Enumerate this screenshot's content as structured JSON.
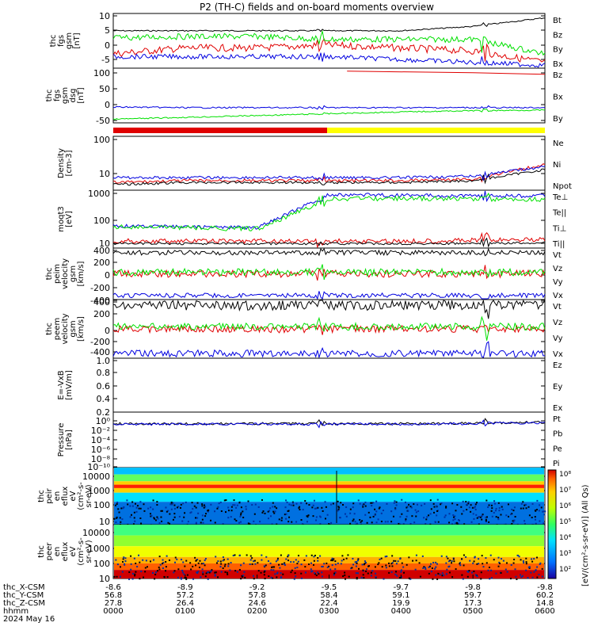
{
  "title": "P2 (TH-C) fields and on-board moments overview",
  "colors": {
    "black": "#000000",
    "red": "#e00000",
    "green": "#00e000",
    "blue": "#0000e0",
    "yellow": "#ffff00"
  },
  "panels": [
    {
      "ylabel": [
        "thc",
        "fgs",
        "gsm",
        "[nT]"
      ],
      "yticks": [
        "10",
        "5",
        "0",
        "-5"
      ],
      "legend": [
        {
          "text": "Bt",
          "color": "black"
        },
        {
          "text": "Bz",
          "color": "red"
        },
        {
          "text": "By",
          "color": "green"
        },
        {
          "text": "Bx",
          "color": "blue"
        }
      ]
    },
    {
      "ylabel": [
        "thc",
        "fgs",
        "gsm",
        "dsg",
        "[nT]"
      ],
      "yticks": [
        "100",
        "50",
        "0",
        "-50"
      ],
      "legend": [
        {
          "text": "Bz",
          "color": "red"
        },
        {
          "text": "Bx",
          "color": "black"
        },
        {
          "text": "By",
          "color": "green"
        }
      ]
    },
    {
      "ylabel": [
        "Density",
        "[cm-3]"
      ],
      "yticks": [
        "100",
        "10"
      ],
      "legend": [
        {
          "text": "Ne",
          "color": "red"
        },
        {
          "text": "Ni",
          "color": "black"
        },
        {
          "text": "Npot",
          "color": "blue"
        }
      ]
    },
    {
      "ylabel": [
        "moqt3",
        "[eV]"
      ],
      "yticks": [
        "1000",
        "100",
        "10"
      ],
      "legend": [
        {
          "text": "Te⊥",
          "color": "red"
        },
        {
          "text": "Te||",
          "color": "black"
        },
        {
          "text": "Ti⊥",
          "color": "blue"
        },
        {
          "text": "Ti||",
          "color": "green"
        }
      ]
    },
    {
      "ylabel": [
        "thc",
        "peim",
        "velocity",
        "gsm",
        "[km/s]"
      ],
      "yticks": [
        "400",
        "200",
        "0",
        "-200",
        "-400"
      ],
      "legend": [
        {
          "text": "Vt",
          "color": "black"
        },
        {
          "text": "Vz",
          "color": "red"
        },
        {
          "text": "Vy",
          "color": "green"
        },
        {
          "text": "Vx",
          "color": "blue"
        }
      ]
    },
    {
      "ylabel": [
        "thc",
        "peem",
        "velocity",
        "gsm",
        "[km/s]"
      ],
      "yticks": [
        "400",
        "200",
        "0",
        "-200",
        "-400"
      ],
      "legend": [
        {
          "text": "Vt",
          "color": "black"
        },
        {
          "text": "Vz",
          "color": "red"
        },
        {
          "text": "Vy",
          "color": "green"
        },
        {
          "text": "Vx",
          "color": "blue"
        }
      ]
    },
    {
      "ylabel": [
        "E=-VxB",
        "[mV/m]"
      ],
      "yticks": [
        "1.0",
        "0.8",
        "0.6",
        "0.4",
        "0.2",
        "0.0"
      ],
      "legend": [
        {
          "text": "Ez",
          "color": "red"
        },
        {
          "text": "Ey",
          "color": "green"
        },
        {
          "text": "Ex",
          "color": "blue"
        }
      ]
    },
    {
      "ylabel": [
        "Pressure",
        "[nPa]"
      ],
      "yticks": [
        "10⁰",
        "10⁻²",
        "10⁻⁴",
        "10⁻⁶",
        "10⁻⁸",
        "10⁻¹⁰"
      ],
      "legend": [
        {
          "text": "Pt",
          "color": "black"
        },
        {
          "text": "Pb",
          "color": "red"
        },
        {
          "text": "Pe",
          "color": "green"
        },
        {
          "text": "Pi",
          "color": "blue"
        }
      ]
    },
    {
      "ylabel": [
        "thc",
        "peir",
        "en",
        "eflux",
        "eV",
        "(cm²-s-",
        "sr-eV)"
      ],
      "yticks": [
        "10000",
        "1000",
        "100",
        "10"
      ],
      "legend": []
    },
    {
      "ylabel": [
        "thc",
        "peer",
        "en",
        "eflux",
        "eV",
        "(cm²-s-",
        "sr-eV)"
      ],
      "yticks": [
        "10000",
        "1000",
        "100",
        "10"
      ],
      "legend": []
    }
  ],
  "colorbar": {
    "ticks": [
      "10⁸",
      "10⁷",
      "10⁶",
      "10⁵",
      "10⁴",
      "10³",
      "10²"
    ],
    "label": "[eV/(cm²-s-sr-eV)] (All Qs)"
  },
  "xaxis": {
    "row_labels": [
      "thc_X-CSM",
      "thc_Y-CSM",
      "thc_Z-CSM",
      "hhmm",
      "2024 May 16"
    ],
    "columns": [
      [
        "-8.6",
        "56.8",
        "27.8",
        "0000"
      ],
      [
        "-8.9",
        "57.2",
        "26.4",
        "0100"
      ],
      [
        "-9.2",
        "57.8",
        "24.6",
        "0200"
      ],
      [
        "-9.5",
        "58.4",
        "22.4",
        "0300"
      ],
      [
        "-9.7",
        "59.1",
        "19.9",
        "0400"
      ],
      [
        "-9.8",
        "59.7",
        "17.3",
        "0500"
      ],
      [
        "-9.8",
        "60.2",
        "14.8",
        "0600"
      ]
    ]
  },
  "chart_data": {
    "type": "line",
    "title": "P2 (TH-C) fields and on-board moments overview",
    "x": [
      "0000",
      "0100",
      "0200",
      "0300",
      "0400",
      "0500",
      "0600"
    ],
    "panels": [
      {
        "ylim": [
          -8,
          11
        ],
        "series": [
          {
            "name": "Bt",
            "values": [
              5,
              5,
              5,
              5,
              5,
              6.5,
              9.5
            ]
          },
          {
            "name": "Bz",
            "values": [
              -3,
              -1,
              -1,
              0,
              -1,
              -2,
              -6
            ]
          },
          {
            "name": "By",
            "values": [
              2.5,
              3,
              3,
              2,
              2,
              2,
              -3
            ]
          },
          {
            "name": "Bx",
            "values": [
              -4,
              -4,
              -4,
              -4,
              -5,
              -6,
              -7
            ]
          }
        ]
      },
      {
        "ylim": [
          -70,
          110
        ],
        "series": [
          {
            "name": "Bz",
            "values": [
              null,
              null,
              null,
              null,
              100,
              95,
              90
            ]
          },
          {
            "name": "Bx",
            "values": [
              -18,
              -20,
              -20,
              -20,
              -20,
              -20,
              -20
            ]
          },
          {
            "name": "By",
            "values": [
              -58,
              -52,
              -46,
              -40,
              -34,
              -30,
              -28
            ]
          }
        ]
      },
      {
        "ylim": [
          2,
          100
        ],
        "ylog": true,
        "series": [
          {
            "name": "Ne",
            "values": [
              3.5,
              4,
              4,
              4,
              4,
              4.5,
              13
            ]
          },
          {
            "name": "Ni",
            "values": [
              3,
              3.5,
              3.5,
              3.5,
              3.5,
              4,
              9
            ]
          },
          {
            "name": "Npot",
            "values": [
              5,
              5,
              5,
              5,
              5,
              5.5,
              11
            ]
          }
        ]
      },
      {
        "ylim": [
          8,
          1500
        ],
        "ylog": true,
        "series": [
          {
            "name": "Te⊥",
            "values": [
              15,
              15,
              15,
              15,
              15,
              16,
              18
            ]
          },
          {
            "name": "Te||",
            "values": [
              12,
              12,
              12,
              12,
              12,
              12,
              13
            ]
          },
          {
            "name": "Ti⊥",
            "values": [
              60,
              55,
              50,
              1000,
              950,
              900,
              900
            ]
          },
          {
            "name": "Ti||",
            "values": [
              55,
              50,
              45,
              700,
              700,
              700,
              650
            ]
          }
        ]
      },
      {
        "ylim": [
          -500,
          500
        ],
        "series": [
          {
            "name": "Vt",
            "values": [
              410,
              410,
              410,
              410,
              410,
              410,
              410
            ]
          },
          {
            "name": "Vz",
            "values": [
              0,
              0,
              0,
              0,
              0,
              0,
              0
            ]
          },
          {
            "name": "Vy",
            "values": [
              30,
              30,
              30,
              30,
              30,
              30,
              30
            ]
          },
          {
            "name": "Vx",
            "values": [
              -420,
              -420,
              -420,
              -420,
              -420,
              -420,
              -420
            ]
          }
        ]
      },
      {
        "ylim": [
          -500,
          500
        ],
        "series": [
          {
            "name": "Vt",
            "values": [
              400,
              400,
              400,
              400,
              400,
              410,
              420
            ]
          },
          {
            "name": "Vz",
            "values": [
              0,
              0,
              -10,
              0,
              0,
              0,
              0
            ]
          },
          {
            "name": "Vy",
            "values": [
              40,
              40,
              40,
              40,
              40,
              40,
              40
            ]
          },
          {
            "name": "Vx",
            "values": [
              -420,
              -420,
              -420,
              -420,
              -420,
              -420,
              -420
            ]
          }
        ]
      },
      {
        "ylim": [
          0,
          1
        ],
        "series": []
      },
      {
        "ylim": [
          1e-10,
          10
        ],
        "ylog": true,
        "series": [
          {
            "name": "Pt",
            "values": [
              0.05,
              0.05,
              0.05,
              0.05,
              0.05,
              0.06,
              0.1
            ]
          },
          {
            "name": "Pi",
            "values": [
              0.04,
              0.04,
              0.04,
              0.04,
              0.04,
              0.05,
              0.08
            ]
          }
        ]
      }
    ]
  }
}
